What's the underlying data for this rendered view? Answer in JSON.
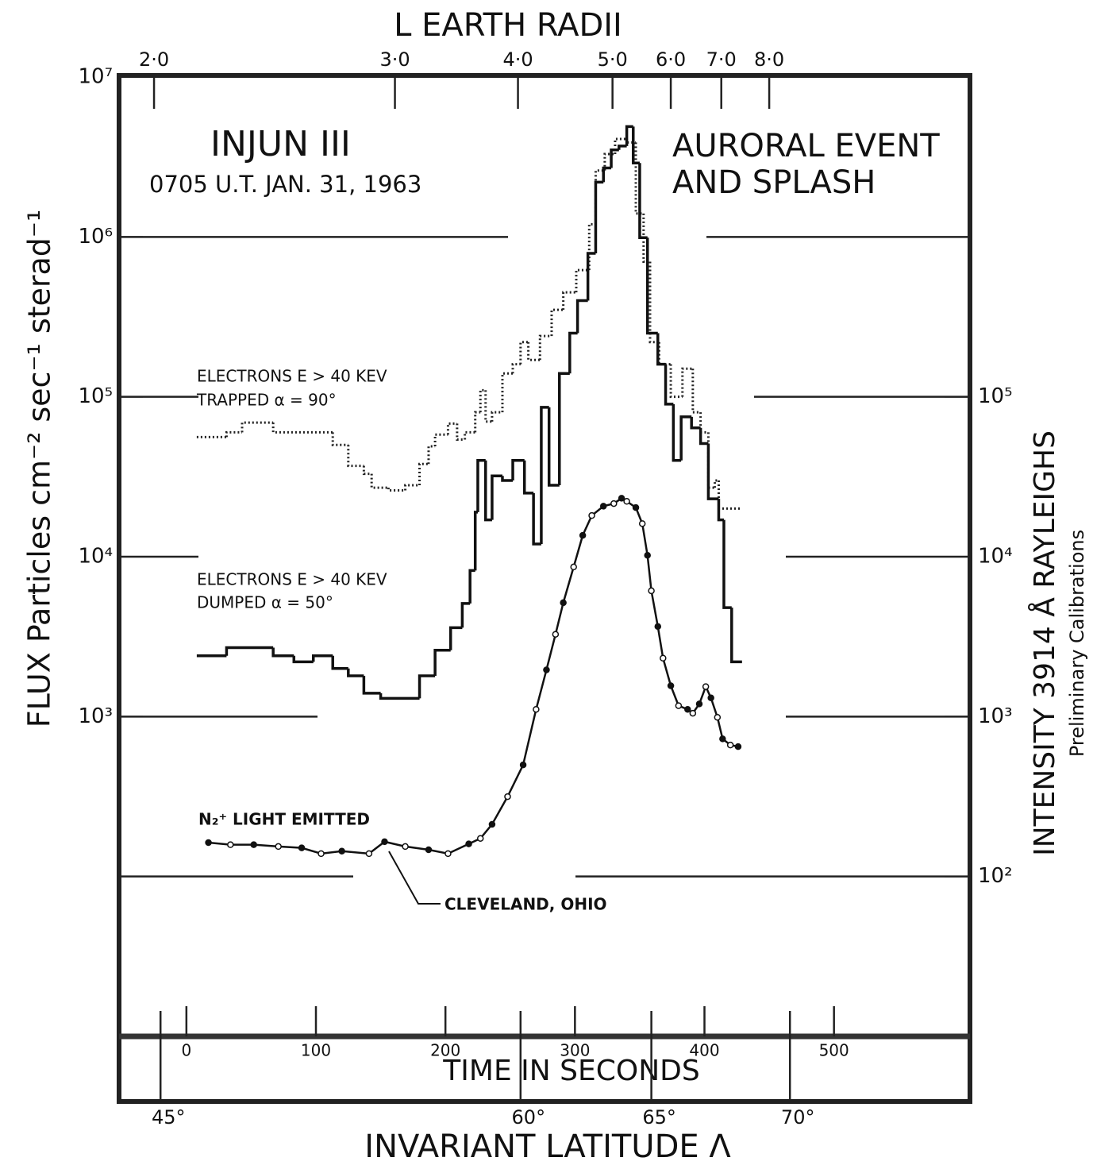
{
  "chart_data": {
    "type": "step",
    "title": "INJUN III",
    "subtitle": "0705 U.T. JAN. 31, 1963",
    "annotations": {
      "event_1": "AURORAL EVENT",
      "event_2": "AND SPLASH",
      "site": "CLEVELAND, OHIO"
    },
    "ylabel": "FLUX Particles cm⁻² sec⁻¹ sterad⁻¹",
    "y2label": "INTENSITY 3914 Å RAYLEIGHS",
    "y2sublabel": "Preliminary Calibrations",
    "xlabel": "TIME IN SECONDS",
    "top_axis": {
      "label": "L EARTH RADII",
      "ticks": [
        {
          "value": -25,
          "label": "2·0"
        },
        {
          "value": 161,
          "label": "3·0"
        },
        {
          "value": 256,
          "label": "4·0"
        },
        {
          "value": 329,
          "label": "5·0"
        },
        {
          "value": 374,
          "label": "6·0"
        },
        {
          "value": 413,
          "label": "7·0"
        },
        {
          "value": 450,
          "label": "8·0"
        }
      ]
    },
    "latitude_axis": {
      "label": "INVARIANT LATITUDE Λ",
      "ticks": [
        {
          "value": -20,
          "label": "45°"
        },
        {
          "value": 258,
          "label": "60°"
        },
        {
          "value": 359,
          "label": "65°"
        },
        {
          "value": 466,
          "label": "70°"
        }
      ]
    },
    "xlim": [
      -52,
      605
    ],
    "xticks": [
      0,
      100,
      200,
      300,
      400,
      500
    ],
    "ylog": true,
    "ylim": [
      10,
      10000000
    ],
    "yticks": [
      {
        "value": 10000000,
        "label": "10⁷"
      },
      {
        "value": 1000000,
        "label": "10⁶"
      },
      {
        "value": 100000,
        "label": "10⁵"
      },
      {
        "value": 10000,
        "label": "10⁴"
      },
      {
        "value": 1000,
        "label": "10³"
      }
    ],
    "y2lim": [
      10,
      10000000
    ],
    "y2ticks": [
      {
        "value": 100000,
        "label": "10⁵"
      },
      {
        "value": 10000,
        "label": "10⁴"
      },
      {
        "value": 1000,
        "label": "10³"
      },
      {
        "value": 100,
        "label": "10²"
      }
    ],
    "grid": true,
    "series": [
      {
        "name": "ELECTRONS E > 40 KEV",
        "detail": "TRAPPED α = 90°",
        "style": "dotted",
        "color": "#222222",
        "bins": [
          8,
          31,
          43,
          67,
          113,
          125,
          137,
          143,
          156,
          169,
          180,
          187,
          192,
          202,
          209,
          215,
          223,
          227,
          231,
          236,
          244,
          252,
          258,
          264,
          273,
          282,
          291,
          301,
          311,
          316,
          323,
          331,
          340,
          347,
          353,
          358,
          365,
          374,
          383,
          391,
          397,
          403,
          408,
          411,
          429
        ],
        "values": [
          56000,
          60000,
          69000,
          60000,
          50000,
          37000,
          33000,
          27000,
          26000,
          28000,
          38000,
          49000,
          58000,
          68000,
          54000,
          60000,
          80000,
          110000,
          70000,
          80000,
          140000,
          160000,
          220000,
          170000,
          240000,
          350000,
          450000,
          620000,
          1200000,
          2600000,
          3300000,
          4100000,
          3900000,
          1400000,
          700000,
          220000,
          160000,
          100000,
          150000,
          80000,
          60000,
          27000,
          30000,
          20000
        ]
      },
      {
        "name": "ELECTRONS E > 40 KEV",
        "detail": "DUMPED α = 50°",
        "style": "solid",
        "color": "#111111",
        "bins": [
          8,
          31,
          67,
          83,
          98,
          113,
          125,
          137,
          150,
          180,
          192,
          204,
          213,
          219,
          223,
          225,
          231,
          236,
          244,
          252,
          261,
          268,
          274,
          280,
          288,
          296,
          302,
          310,
          316,
          322,
          328,
          334,
          340,
          345,
          350,
          356,
          364,
          370,
          376,
          382,
          390,
          397,
          403,
          411,
          415,
          421,
          429
        ],
        "values": [
          2400,
          2700,
          2400,
          2200,
          2400,
          2000,
          1800,
          1400,
          1300,
          1800,
          2600,
          3600,
          5100,
          8200,
          19000,
          40000,
          17000,
          32000,
          30000,
          40000,
          25000,
          12000,
          86000,
          28000,
          140000,
          250000,
          400000,
          790000,
          2200000,
          2700000,
          3500000,
          3700000,
          4900000,
          2900000,
          990000,
          250000,
          160000,
          90000,
          40000,
          75000,
          64000,
          51000,
          23000,
          17000,
          4800,
          2200
        ]
      },
      {
        "name": "N₂⁺ LIGHT EMITTED",
        "style": "markers",
        "axis": "y2",
        "color": "#111111",
        "x": [
          17,
          34,
          52,
          71,
          89,
          104,
          120,
          141,
          153,
          169,
          187,
          202,
          218,
          227,
          236,
          248,
          260,
          270,
          278,
          285,
          291,
          299,
          306,
          313,
          322,
          330,
          336,
          340,
          347,
          352,
          356,
          359,
          364,
          368,
          374,
          380,
          387,
          391,
          396,
          401,
          405,
          410,
          414,
          420,
          426
        ],
        "values": [
          163,
          158,
          158,
          154,
          151,
          139,
          144,
          139,
          165,
          154,
          147,
          139,
          160,
          173,
          212,
          316,
          499,
          1110,
          1960,
          3270,
          5160,
          8630,
          13600,
          18100,
          20700,
          21500,
          23200,
          22200,
          20300,
          16100,
          10200,
          6120,
          3660,
          2320,
          1560,
          1170,
          1110,
          1050,
          1200,
          1540,
          1310,
          990,
          726,
          664,
          649
        ]
      }
    ]
  }
}
